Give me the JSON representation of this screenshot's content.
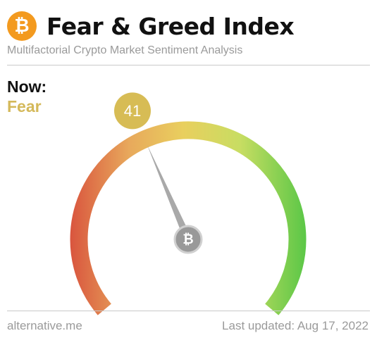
{
  "header": {
    "logo_glyph": "₿",
    "logo_icon": "bitcoin-icon",
    "title": "Fear & Greed Index",
    "subtitle": "Multifactorial Crypto Market Sentiment Analysis"
  },
  "status": {
    "now_label": "Now:",
    "classification": "Fear",
    "value": 41,
    "value_text": "41"
  },
  "gauge": {
    "min": 0,
    "max": 100,
    "hub_glyph": "₿",
    "hub_icon": "bitcoin-icon"
  },
  "footer": {
    "source": "alternative.me",
    "last_updated": "Last updated: Aug 17, 2022"
  },
  "colors": {
    "logo": "#f39a1f",
    "fear_text": "#d4b95a",
    "badge": "#d7bc55",
    "extreme_fear": "#d9553e",
    "fear": "#e8a95c",
    "neutral": "#e9cf5e",
    "greed": "#c8dd62",
    "extreme_greed": "#5bc747",
    "needle": "#a9a9a9",
    "hub": "#999999"
  }
}
